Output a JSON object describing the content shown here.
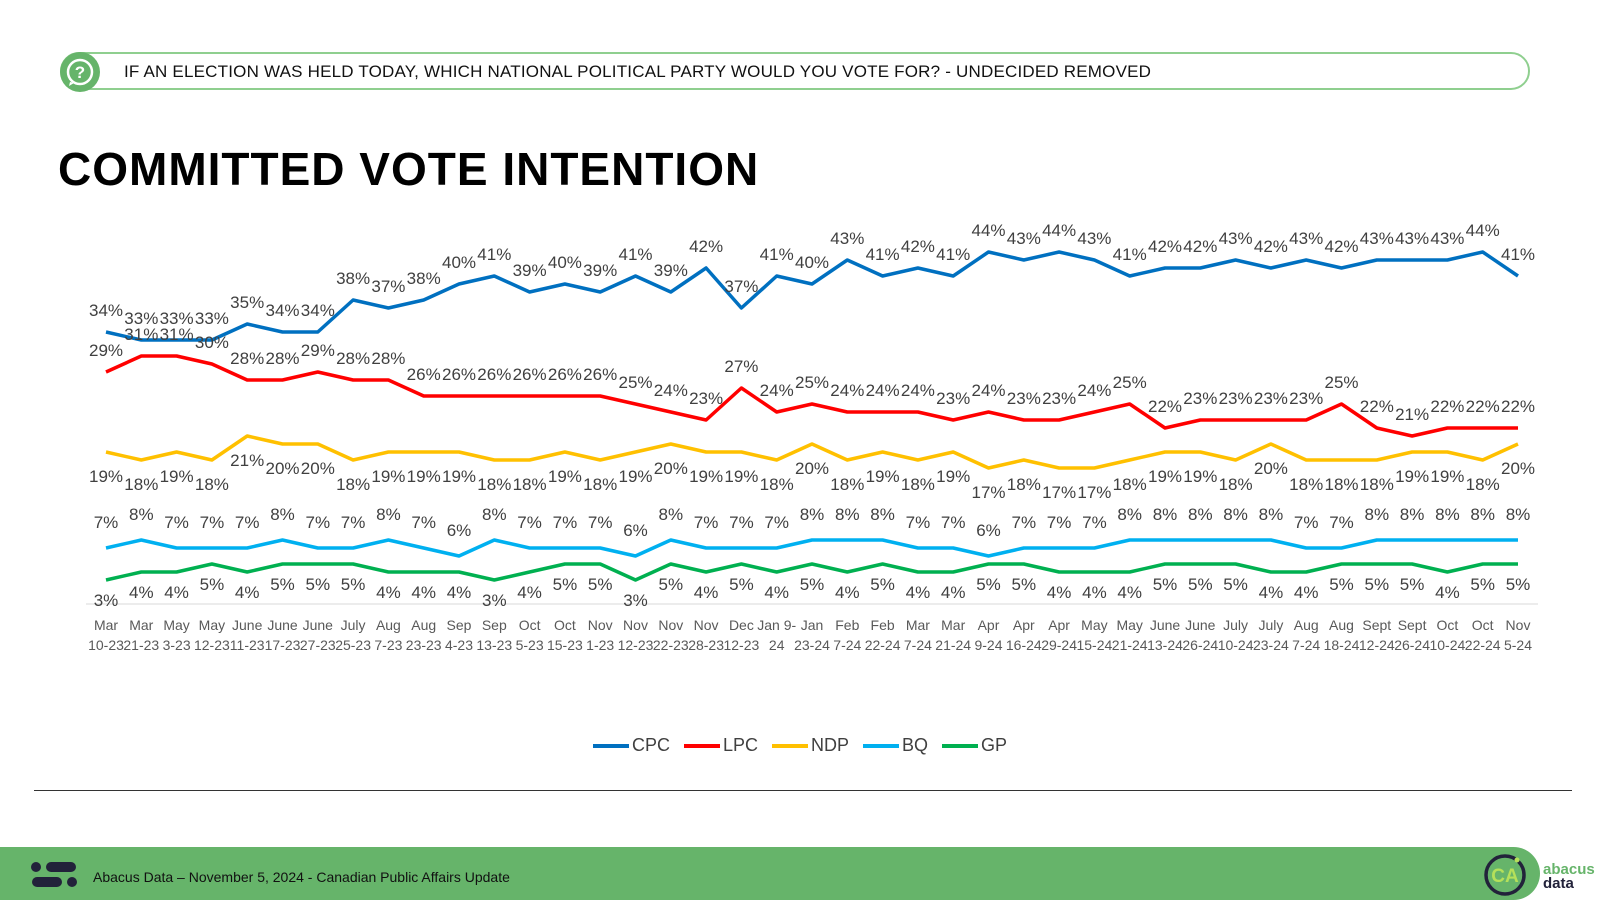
{
  "header": {
    "question": "IF AN ELECTION WAS HELD TODAY, WHICH NATIONAL POLITICAL PARTY WOULD YOU VOTE FOR? - UNDECIDED REMOVED",
    "icon": "question-chat-icon"
  },
  "title": "COMMITTED VOTE INTENTION",
  "footer": {
    "text": "Abacus Data – November 5, 2024 - Canadian Public Affairs Update",
    "logo_left": "abacus-mark-icon",
    "logo_circle": "CA",
    "logo_word_1": "abacus",
    "logo_word_2": "data"
  },
  "colors": {
    "CPC": "#0070C0",
    "LPC": "#FF0000",
    "NDP": "#FFC000",
    "BQ": "#00B0F0",
    "GP": "#00B050",
    "brand_green": "#66B46A"
  },
  "chart_data": {
    "type": "line",
    "title": "",
    "xlabel": "",
    "ylabel": "",
    "ylim": [
      0,
      46
    ],
    "grid": false,
    "legend_placement": "bottom",
    "categories": [
      [
        "Mar",
        "10-23"
      ],
      [
        "Mar",
        "21-23"
      ],
      [
        "May",
        "3-23"
      ],
      [
        "May",
        "12-23"
      ],
      [
        "June",
        "11-23"
      ],
      [
        "June",
        "17-23"
      ],
      [
        "June",
        "27-23"
      ],
      [
        "July",
        "25-23"
      ],
      [
        "Aug",
        "7-23"
      ],
      [
        "Aug",
        "23-23"
      ],
      [
        "Sep",
        "4-23"
      ],
      [
        "Sep",
        "13-23"
      ],
      [
        "Oct",
        "5-23"
      ],
      [
        "Oct",
        "15-23"
      ],
      [
        "Nov",
        "1-23"
      ],
      [
        "Nov",
        "12-23"
      ],
      [
        "Nov",
        "22-23"
      ],
      [
        "Nov",
        "28-23"
      ],
      [
        "Dec",
        "12-23"
      ],
      [
        "Jan 9-",
        "24"
      ],
      [
        "Jan",
        "23-24"
      ],
      [
        "Feb",
        "7-24"
      ],
      [
        "Feb",
        "22-24"
      ],
      [
        "Mar",
        "7-24"
      ],
      [
        "Mar",
        "21-24"
      ],
      [
        "Apr",
        "9-24"
      ],
      [
        "Apr",
        "16-24"
      ],
      [
        "Apr",
        "29-24"
      ],
      [
        "May",
        "15-24"
      ],
      [
        "May",
        "21-24"
      ],
      [
        "June",
        "13-24"
      ],
      [
        "June",
        "26-24"
      ],
      [
        "July",
        "10-24"
      ],
      [
        "July",
        "23-24"
      ],
      [
        "Aug",
        "7-24"
      ],
      [
        "Aug",
        "18-24"
      ],
      [
        "Sept",
        "12-24"
      ],
      [
        "Sept",
        "26-24"
      ],
      [
        "Oct",
        "10-24"
      ],
      [
        "Oct",
        "22-24"
      ],
      [
        "Nov",
        "5-24"
      ]
    ],
    "series": [
      {
        "name": "CPC",
        "values": [
          34,
          33,
          33,
          33,
          35,
          34,
          34,
          38,
          37,
          38,
          40,
          41,
          39,
          40,
          39,
          41,
          39,
          42,
          37,
          41,
          40,
          43,
          41,
          42,
          41,
          44,
          43,
          44,
          43,
          41,
          42,
          42,
          43,
          42,
          43,
          42,
          43,
          43,
          43,
          44,
          41
        ]
      },
      {
        "name": "LPC",
        "values": [
          29,
          31,
          31,
          30,
          28,
          28,
          29,
          28,
          28,
          26,
          26,
          26,
          26,
          26,
          26,
          25,
          24,
          23,
          27,
          24,
          25,
          24,
          24,
          24,
          23,
          24,
          23,
          23,
          24,
          25,
          22,
          23,
          23,
          23,
          23,
          25,
          22,
          21,
          22,
          22,
          22
        ]
      },
      {
        "name": "NDP",
        "values": [
          19,
          18,
          19,
          18,
          21,
          20,
          20,
          18,
          19,
          19,
          19,
          18,
          18,
          19,
          18,
          19,
          20,
          19,
          19,
          18,
          20,
          18,
          19,
          18,
          19,
          17,
          18,
          17,
          17,
          18,
          19,
          19,
          18,
          20,
          18,
          18,
          18,
          19,
          19,
          18,
          20
        ]
      },
      {
        "name": "BQ",
        "values": [
          7,
          8,
          7,
          7,
          7,
          8,
          7,
          7,
          8,
          7,
          6,
          8,
          7,
          7,
          7,
          6,
          8,
          7,
          7,
          7,
          8,
          8,
          8,
          7,
          7,
          6,
          7,
          7,
          7,
          8,
          8,
          8,
          8,
          8,
          7,
          7,
          8,
          8,
          8,
          8,
          8
        ]
      },
      {
        "name": "GP",
        "values": [
          3,
          4,
          4,
          5,
          4,
          5,
          5,
          5,
          4,
          4,
          4,
          3,
          4,
          5,
          5,
          3,
          5,
          4,
          5,
          4,
          5,
          4,
          5,
          4,
          4,
          5,
          5,
          4,
          4,
          4,
          5,
          5,
          5,
          4,
          4,
          5,
          5,
          5,
          4,
          5,
          5
        ]
      }
    ],
    "value_suffix": "%"
  }
}
